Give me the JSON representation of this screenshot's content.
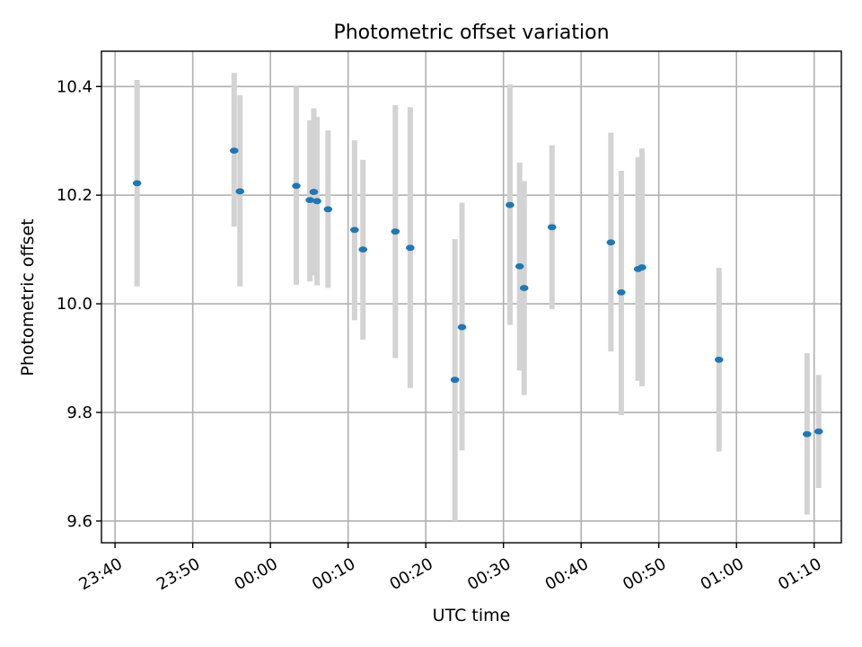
{
  "chart_data": {
    "type": "scatter",
    "title": "Photometric offset variation",
    "xlabel": "UTC time",
    "ylabel": "Photometric offset",
    "x_axis": {
      "kind": "time",
      "range": [
        "23:38:15",
        "01:13:30"
      ],
      "ticks": [
        "23:40",
        "23:50",
        "00:00",
        "00:10",
        "00:20",
        "00:30",
        "00:40",
        "00:50",
        "01:00",
        "01:10"
      ]
    },
    "y_axis": {
      "range": [
        9.56,
        10.465
      ],
      "ticks": [
        "9.6",
        "9.8",
        "10.0",
        "10.2",
        "10.4"
      ]
    },
    "grid": true,
    "colors": {
      "points": "#1f77b4",
      "errorbars": "#d3d3d3"
    },
    "points": [
      {
        "x": "23:42:50",
        "y": 10.222,
        "lo": 10.032,
        "hi": 10.412
      },
      {
        "x": "23:55:20",
        "y": 10.282,
        "lo": 10.142,
        "hi": 10.425
      },
      {
        "x": "23:56:05",
        "y": 10.207,
        "lo": 10.032,
        "hi": 10.384
      },
      {
        "x": "00:03:20",
        "y": 10.217,
        "lo": 10.035,
        "hi": 10.4
      },
      {
        "x": "00:05:05",
        "y": 10.191,
        "lo": 10.041,
        "hi": 10.338
      },
      {
        "x": "00:05:35",
        "y": 10.206,
        "lo": 10.052,
        "hi": 10.36
      },
      {
        "x": "00:06:00",
        "y": 10.189,
        "lo": 10.034,
        "hi": 10.344
      },
      {
        "x": "00:07:25",
        "y": 10.174,
        "lo": 10.029,
        "hi": 10.319
      },
      {
        "x": "00:10:50",
        "y": 10.136,
        "lo": 9.97,
        "hi": 10.301
      },
      {
        "x": "00:11:55",
        "y": 10.1,
        "lo": 9.934,
        "hi": 10.265
      },
      {
        "x": "00:16:05",
        "y": 10.133,
        "lo": 9.9,
        "hi": 10.366
      },
      {
        "x": "00:18:00",
        "y": 10.103,
        "lo": 9.845,
        "hi": 10.362
      },
      {
        "x": "00:23:45",
        "y": 9.86,
        "lo": 9.6,
        "hi": 10.119
      },
      {
        "x": "00:24:40",
        "y": 9.957,
        "lo": 9.73,
        "hi": 10.186
      },
      {
        "x": "00:30:50",
        "y": 10.182,
        "lo": 9.961,
        "hi": 10.404
      },
      {
        "x": "00:32:05",
        "y": 10.069,
        "lo": 9.877,
        "hi": 10.26
      },
      {
        "x": "00:32:40",
        "y": 10.029,
        "lo": 9.832,
        "hi": 10.226
      },
      {
        "x": "00:36:15",
        "y": 10.141,
        "lo": 9.99,
        "hi": 10.292
      },
      {
        "x": "00:43:50",
        "y": 10.113,
        "lo": 9.912,
        "hi": 10.315
      },
      {
        "x": "00:45:10",
        "y": 10.021,
        "lo": 9.795,
        "hi": 10.245
      },
      {
        "x": "00:47:20",
        "y": 10.064,
        "lo": 9.858,
        "hi": 10.27
      },
      {
        "x": "00:47:50",
        "y": 10.067,
        "lo": 9.848,
        "hi": 10.286
      },
      {
        "x": "00:57:45",
        "y": 9.897,
        "lo": 9.728,
        "hi": 10.066
      },
      {
        "x": "01:09:05",
        "y": 9.76,
        "lo": 9.612,
        "hi": 9.909
      },
      {
        "x": "01:10:35",
        "y": 9.765,
        "lo": 9.661,
        "hi": 9.869
      }
    ]
  }
}
